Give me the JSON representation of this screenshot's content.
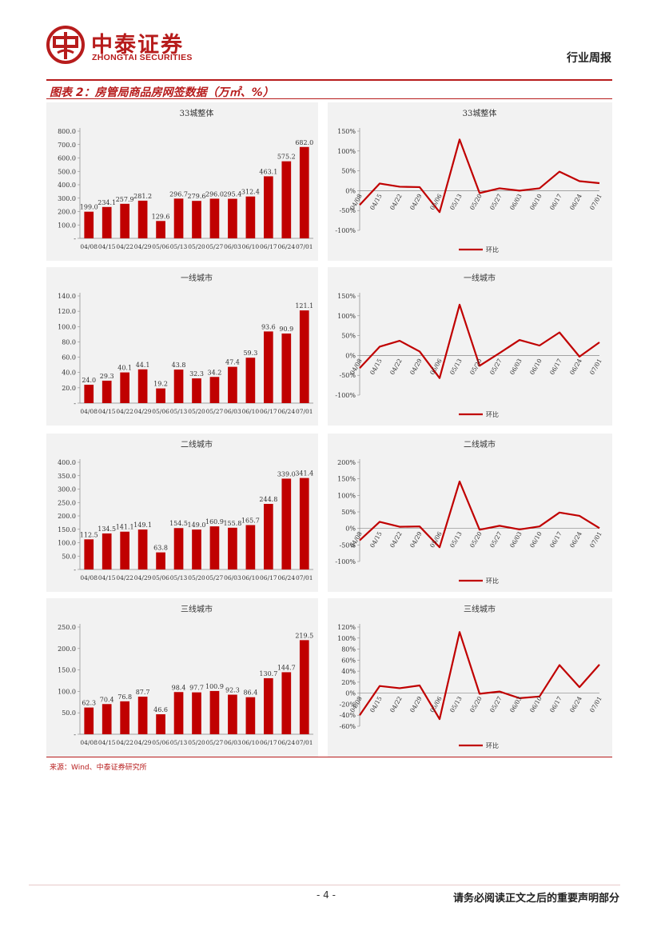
{
  "header": {
    "brand_cn": "中泰证券",
    "brand_en": "ZHONGTAI SECURITIES",
    "report_type": "行业周报",
    "brand_color": "#b71c1c"
  },
  "figure": {
    "title": "图表 2：房管局商品房网签数据（万㎡、%）",
    "source": "来源：Wind、中泰证券研究所"
  },
  "footer": {
    "page": "- 4 -",
    "disclaimer": "请务必阅读正文之后的重要声明部分"
  },
  "chart_data": [
    {
      "type": "bar",
      "title": "33城整体",
      "categories": [
        "04/08",
        "04/15",
        "04/22",
        "04/29",
        "05/06",
        "05/13",
        "05/20",
        "05/27",
        "06/03",
        "06/10",
        "06/17",
        "06/24",
        "07/01"
      ],
      "values": [
        199.0,
        234.1,
        257.9,
        281.2,
        129.6,
        296.7,
        279.6,
        296.0,
        295.4,
        312.4,
        463.1,
        575.2,
        682.0
      ],
      "value_labels": [
        "199.0",
        "234.1",
        "257.9",
        "281.2",
        "129.6",
        "296.7",
        "279.6",
        "296.0",
        "295.4",
        "312.4",
        "463.1",
        "575.2",
        "682.0"
      ],
      "yticks": [
        "800.0",
        "700.0",
        "600.0",
        "500.0",
        "400.0",
        "300.0",
        "200.0",
        "100.0",
        "-"
      ],
      "ylim": [
        0,
        800
      ],
      "color": "#c00000"
    },
    {
      "type": "line",
      "title": "33城整体",
      "categories": [
        "04/08",
        "04/15",
        "04/22",
        "04/29",
        "05/06",
        "05/13",
        "05/20",
        "05/27",
        "06/03",
        "06/10",
        "06/17",
        "06/24",
        "07/01"
      ],
      "series": [
        {
          "name": "环比",
          "values": [
            -36,
            18,
            10,
            9,
            -54,
            129,
            -6,
            6,
            0,
            6,
            48,
            24,
            19
          ]
        }
      ],
      "yticks": [
        "150%",
        "100%",
        "50%",
        "0%",
        "-50%",
        "-100%"
      ],
      "ylim": [
        -100,
        150
      ],
      "color": "#c00000",
      "legend": "bottom"
    },
    {
      "type": "bar",
      "title": "一线城市",
      "categories": [
        "04/08",
        "04/15",
        "04/22",
        "04/29",
        "05/06",
        "05/13",
        "05/20",
        "05/27",
        "06/03",
        "06/10",
        "06/17",
        "06/24",
        "07/01"
      ],
      "values": [
        24.0,
        29.3,
        40.1,
        44.1,
        19.2,
        43.8,
        32.3,
        34.2,
        47.4,
        59.3,
        93.6,
        90.9,
        121.1
      ],
      "value_labels": [
        "24.0",
        "29.3",
        "40.1",
        "44.1",
        "19.2",
        "43.8",
        "32.3",
        "34.2",
        "47.4",
        "59.3",
        "93.6",
        "90.9",
        "121.1"
      ],
      "yticks": [
        "140.0",
        "120.0",
        "100.0",
        "80.0",
        "60.0",
        "40.0",
        "20.0",
        "-"
      ],
      "ylim": [
        0,
        140
      ],
      "color": "#c00000"
    },
    {
      "type": "line",
      "title": "一线城市",
      "categories": [
        "04/08",
        "04/15",
        "04/22",
        "04/29",
        "05/06",
        "05/13",
        "05/20",
        "05/27",
        "06/03",
        "06/10",
        "06/17",
        "06/24",
        "07/01"
      ],
      "series": [
        {
          "name": "环比",
          "values": [
            -32,
            22,
            37,
            10,
            -57,
            128,
            -26,
            6,
            39,
            25,
            58,
            -3,
            33
          ]
        }
      ],
      "yticks": [
        "150%",
        "100%",
        "50%",
        "0%",
        "-50%",
        "-100%"
      ],
      "ylim": [
        -100,
        150
      ],
      "color": "#c00000",
      "legend": "bottom"
    },
    {
      "type": "bar",
      "title": "二线城市",
      "categories": [
        "04/08",
        "04/15",
        "04/22",
        "04/29",
        "05/06",
        "05/13",
        "05/20",
        "05/27",
        "06/03",
        "06/10",
        "06/17",
        "06/24",
        "07/01"
      ],
      "values": [
        112.5,
        134.5,
        141.1,
        149.1,
        63.8,
        154.5,
        149.0,
        160.9,
        155.8,
        165.7,
        244.8,
        339.0,
        341.4
      ],
      "value_labels": [
        "112.5",
        "134.5",
        "141.1",
        "149.1",
        "63.8",
        "154.5",
        "149.0",
        "160.9",
        "155.8",
        "165.7",
        "244.8",
        "339.0",
        "341.4"
      ],
      "yticks": [
        "400.0",
        "350.0",
        "300.0",
        "250.0",
        "200.0",
        "150.0",
        "100.0",
        "50.0",
        "-"
      ],
      "ylim": [
        0,
        400
      ],
      "color": "#c00000"
    },
    {
      "type": "line",
      "title": "二线城市",
      "categories": [
        "04/08",
        "04/15",
        "04/22",
        "04/29",
        "05/06",
        "05/13",
        "05/20",
        "05/27",
        "06/03",
        "06/10",
        "06/17",
        "06/24",
        "07/01"
      ],
      "series": [
        {
          "name": "环比",
          "values": [
            -36,
            20,
            5,
            6,
            -57,
            142,
            -4,
            8,
            -3,
            6,
            48,
            38,
            1
          ]
        }
      ],
      "yticks": [
        "200%",
        "150%",
        "100%",
        "50%",
        "0%",
        "-50%",
        "-100%"
      ],
      "ylim": [
        -100,
        200
      ],
      "color": "#c00000",
      "legend": "bottom"
    },
    {
      "type": "bar",
      "title": "三线城市",
      "categories": [
        "04/08",
        "04/15",
        "04/22",
        "04/29",
        "05/06",
        "05/13",
        "05/20",
        "05/27",
        "06/03",
        "06/10",
        "06/17",
        "06/24",
        "07/01"
      ],
      "values": [
        62.3,
        70.4,
        76.8,
        87.7,
        46.6,
        98.4,
        97.7,
        100.9,
        92.3,
        86.4,
        130.7,
        144.7,
        219.5
      ],
      "value_labels": [
        "62.3",
        "70.4",
        "76.8",
        "87.7",
        "46.6",
        "98.4",
        "97.7",
        "100.9",
        "92.3",
        "86.4",
        "130.7",
        "144.7",
        "219.5"
      ],
      "yticks": [
        "250.0",
        "200.0",
        "150.0",
        "100.0",
        "50.0",
        "-"
      ],
      "ylim": [
        0,
        250
      ],
      "color": "#c00000"
    },
    {
      "type": "line",
      "title": "三线城市",
      "categories": [
        "04/08",
        "04/15",
        "04/22",
        "04/29",
        "05/06",
        "05/13",
        "05/20",
        "05/27",
        "06/03",
        "06/10",
        "06/17",
        "06/24",
        "07/01"
      ],
      "series": [
        {
          "name": "环比",
          "values": [
            -40,
            13,
            9,
            14,
            -47,
            111,
            -1,
            3,
            -9,
            -6,
            51,
            11,
            52
          ]
        }
      ],
      "yticks": [
        "120%",
        "100%",
        "80%",
        "60%",
        "40%",
        "20%",
        "0%",
        "-20%",
        "-40%",
        "-60%"
      ],
      "ylim": [
        -60,
        120
      ],
      "color": "#c00000",
      "legend": "bottom"
    }
  ]
}
